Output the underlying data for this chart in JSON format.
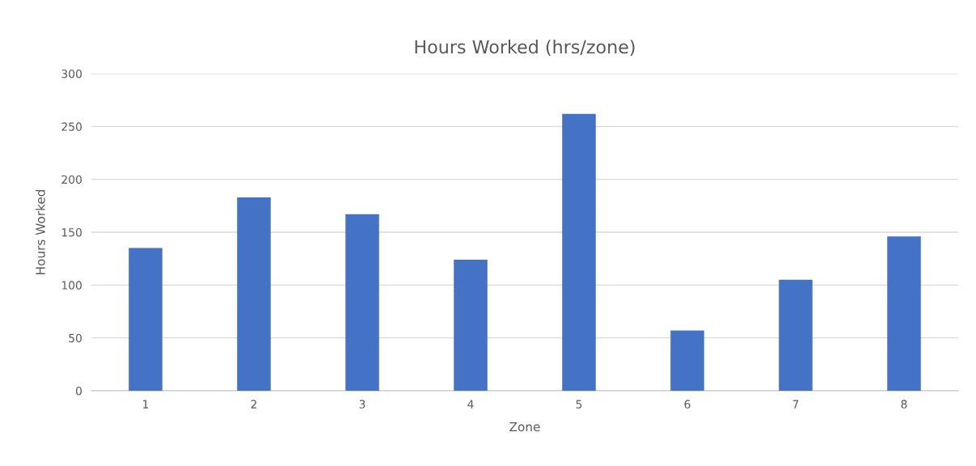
{
  "chart_data": {
    "type": "bar",
    "title": "Hours Worked (hrs/zone)",
    "xlabel": "Zone",
    "ylabel": "Hours Worked",
    "categories": [
      "1",
      "2",
      "3",
      "4",
      "5",
      "6",
      "7",
      "8"
    ],
    "values": [
      135,
      183,
      167,
      124,
      262,
      57,
      105,
      146
    ],
    "color": "#4472c4",
    "ylim": [
      0,
      300
    ],
    "yticks": [
      0,
      50,
      100,
      150,
      200,
      250,
      300
    ],
    "grid": "y",
    "legend": false
  }
}
